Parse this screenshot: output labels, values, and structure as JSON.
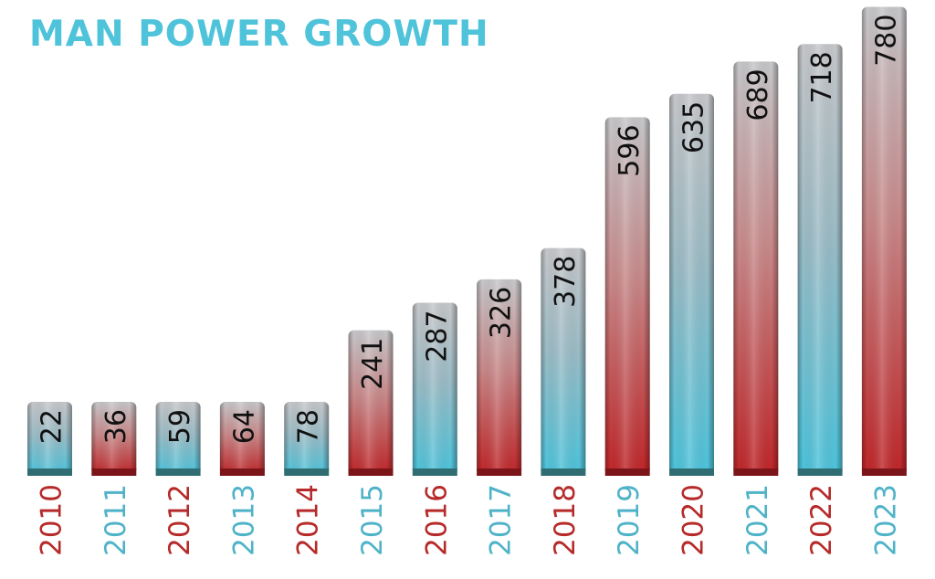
{
  "chart_data": {
    "type": "bar",
    "title": "MAN POWER GROWTH",
    "categories": [
      "2010",
      "2011",
      "2012",
      "2013",
      "2014",
      "2015",
      "2016",
      "2017",
      "2018",
      "2019",
      "2020",
      "2021",
      "2022",
      "2023"
    ],
    "values": [
      22,
      36,
      59,
      64,
      78,
      241,
      287,
      326,
      378,
      596,
      635,
      689,
      718,
      780
    ],
    "xlabel": "",
    "ylabel": "",
    "ylim": [
      0,
      790
    ],
    "grid": false,
    "legend": "none",
    "bar_styles": [
      "blue",
      "red",
      "blue",
      "red",
      "blue",
      "red",
      "blue",
      "red",
      "blue",
      "red",
      "blue",
      "red",
      "blue",
      "red"
    ],
    "label_colors": [
      "red",
      "blue",
      "red",
      "blue",
      "red",
      "blue",
      "red",
      "blue",
      "red",
      "blue",
      "red",
      "blue",
      "red",
      "blue"
    ]
  },
  "colors": {
    "title": "#4ec3da",
    "red": "#b62a2a",
    "blue": "#4fb3c8",
    "bar_top": "#c6c7ca",
    "bar_red_bottom": "#c02528",
    "bar_blue_bottom": "#4bc4dc",
    "base_red": "#7b1519",
    "base_blue": "#2f6d72"
  }
}
